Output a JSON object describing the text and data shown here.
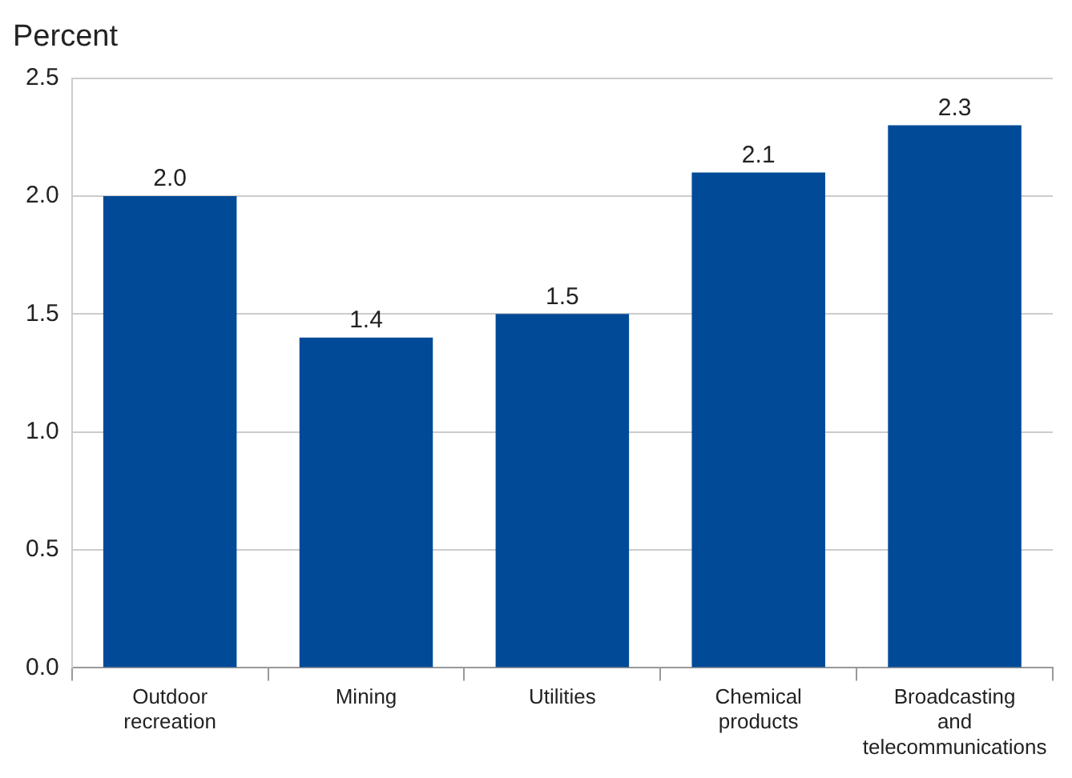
{
  "chart_data": {
    "type": "bar",
    "ylabel": "Percent",
    "categories": [
      "Outdoor recreation",
      "Mining",
      "Utilities",
      "Chemical products",
      "Broadcasting and telecommunications"
    ],
    "values": [
      2.0,
      1.4,
      1.5,
      2.1,
      2.3
    ],
    "value_labels": [
      "2.0",
      "1.4",
      "1.5",
      "2.1",
      "2.3"
    ],
    "color": "#004a97",
    "ylim": [
      0,
      2.5
    ],
    "yticks": [
      {
        "value": 0,
        "label": "0.0"
      },
      0.5,
      {
        "value": 1,
        "label": "1.0"
      },
      1.5,
      {
        "value": 2,
        "label": "2.0"
      },
      2.5
    ],
    "grid": "y",
    "legend": false
  }
}
